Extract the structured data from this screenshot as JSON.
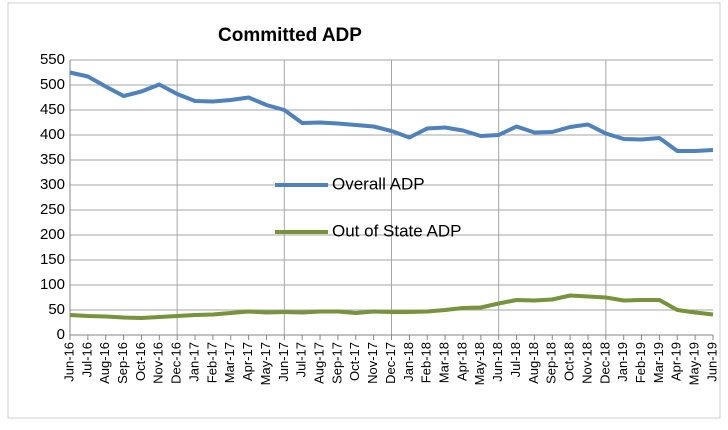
{
  "chart_data": {
    "type": "line",
    "title": "Committed ADP",
    "categories": [
      "Jun-16",
      "Jul-16",
      "Aug-16",
      "Sep-16",
      "Oct-16",
      "Nov-16",
      "Dec-16",
      "Jan-17",
      "Feb-17",
      "Mar-17",
      "Apr-17",
      "May-17",
      "Jun-17",
      "Jul-17",
      "Aug-17",
      "Sep-17",
      "Oct-17",
      "Nov-17",
      "Dec-17",
      "Jan-18",
      "Feb-18",
      "Mar-18",
      "Apr-18",
      "May-18",
      "Jun-18",
      "Jul-18",
      "Aug-18",
      "Sep-18",
      "Oct-18",
      "Nov-18",
      "Dec-18",
      "Jan-19",
      "Feb-19",
      "Mar-19",
      "Apr-19",
      "May-19",
      "Jun-19"
    ],
    "series": [
      {
        "name": "Overall ADP",
        "color": "#4f81bd",
        "values": [
          525,
          517,
          497,
          478,
          487,
          501,
          482,
          468,
          467,
          470,
          475,
          460,
          450,
          424,
          425,
          423,
          420,
          417,
          408,
          395,
          413,
          415,
          409,
          398,
          400,
          417,
          405,
          406,
          416,
          421,
          403,
          392,
          391,
          394,
          368,
          368,
          370
        ]
      },
      {
        "name": "Out of State ADP",
        "color": "#77933c",
        "values": [
          40,
          38,
          37,
          35,
          34,
          36,
          38,
          40,
          41,
          44,
          47,
          45,
          46,
          45,
          47,
          47,
          44,
          47,
          46,
          46,
          47,
          50,
          54,
          55,
          63,
          70,
          69,
          71,
          79,
          77,
          75,
          69,
          70,
          70,
          50,
          45,
          41
        ]
      }
    ],
    "ylim": [
      0,
      550
    ],
    "yticks": [
      0,
      50,
      100,
      150,
      200,
      250,
      300,
      350,
      400,
      450,
      500,
      550
    ],
    "grid": true,
    "x_grid_every": 6
  }
}
